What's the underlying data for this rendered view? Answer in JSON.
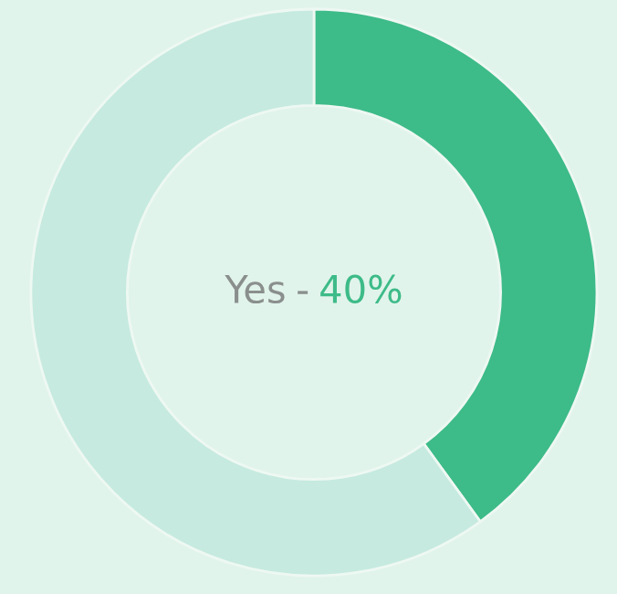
{
  "chart_data": {
    "type": "donut",
    "categories": [
      null,
      null
    ],
    "values": [
      40,
      60
    ],
    "colors": [
      "#3dbb88",
      "#c6eadf"
    ],
    "value_labels": [
      "40%",
      null
    ],
    "annotations": [
      "Yes",
      "-"
    ]
  }
}
